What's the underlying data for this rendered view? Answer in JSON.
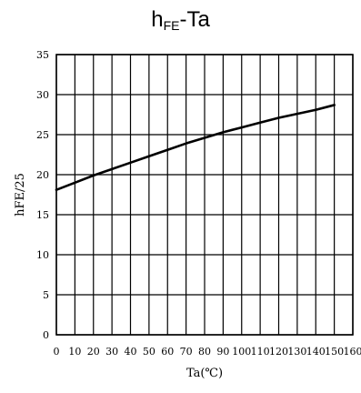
{
  "title": {
    "main": "h",
    "sub": "FE",
    "suffix": "-Ta"
  },
  "chart_data": {
    "type": "line",
    "title": "hFE-Ta",
    "xlabel": "Ta(℃)",
    "ylabel": "hFE/25",
    "xlim": [
      0,
      160
    ],
    "ylim": [
      0,
      35
    ],
    "xticks": [
      0,
      10,
      20,
      30,
      40,
      50,
      60,
      70,
      80,
      90,
      100,
      110,
      120,
      130,
      140,
      150,
      160
    ],
    "yticks": [
      0,
      5,
      10,
      15,
      20,
      25,
      30,
      35
    ],
    "grid": true,
    "series": [
      {
        "x": [
          0,
          10,
          20,
          30,
          40,
          50,
          60,
          70,
          80,
          90,
          100,
          110,
          120,
          130,
          140,
          150
        ],
        "y": [
          18.1,
          19.0,
          19.9,
          20.7,
          21.5,
          22.3,
          23.1,
          23.9,
          24.6,
          25.3,
          25.9,
          26.5,
          27.1,
          27.6,
          28.1,
          28.7
        ]
      }
    ],
    "line_color": "#000000"
  }
}
